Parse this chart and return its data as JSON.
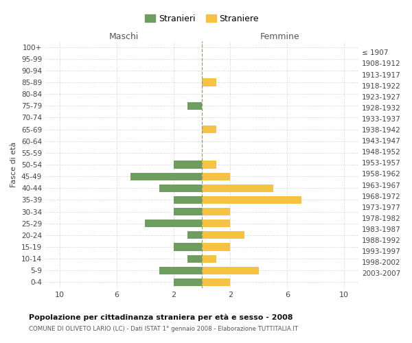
{
  "age_groups": [
    "100+",
    "95-99",
    "90-94",
    "85-89",
    "80-84",
    "75-79",
    "70-74",
    "65-69",
    "60-64",
    "55-59",
    "50-54",
    "45-49",
    "40-44",
    "35-39",
    "30-34",
    "25-29",
    "20-24",
    "15-19",
    "10-14",
    "5-9",
    "0-4"
  ],
  "birth_years": [
    "≤ 1907",
    "1908-1912",
    "1913-1917",
    "1918-1922",
    "1923-1927",
    "1928-1932",
    "1933-1937",
    "1938-1942",
    "1943-1947",
    "1948-1952",
    "1953-1957",
    "1958-1962",
    "1963-1967",
    "1968-1972",
    "1973-1977",
    "1978-1982",
    "1983-1987",
    "1988-1992",
    "1993-1997",
    "1998-2002",
    "2003-2007"
  ],
  "maschi": [
    0,
    0,
    0,
    0,
    0,
    1,
    0,
    0,
    0,
    0,
    2,
    5,
    3,
    2,
    2,
    4,
    1,
    2,
    1,
    3,
    2
  ],
  "femmine": [
    0,
    0,
    0,
    1,
    0,
    0,
    0,
    1,
    0,
    0,
    1,
    2,
    5,
    7,
    2,
    2,
    3,
    2,
    1,
    4,
    2
  ],
  "color_maschi": "#6e9e5f",
  "color_femmine": "#f5c242",
  "bar_height": 0.65,
  "xlim": 11,
  "center_line_color": "#999977",
  "grid_color": "#cccccc",
  "title": "Popolazione per cittadinanza straniera per età e sesso - 2008",
  "subtitle": "COMUNE DI OLIVETO LARIO (LC) - Dati ISTAT 1° gennaio 2008 - Elaborazione TUTTITALIA.IT",
  "ylabel_left": "Fasce di età",
  "legend_maschi": "Stranieri",
  "legend_femmine": "Straniere",
  "header_left": "Maschi",
  "header_right": "Femmine",
  "xtick_positions": [
    -10,
    -6,
    -2,
    2,
    6,
    10
  ],
  "xtick_labels": [
    "10",
    "6",
    "2",
    "2",
    "6",
    "10"
  ]
}
